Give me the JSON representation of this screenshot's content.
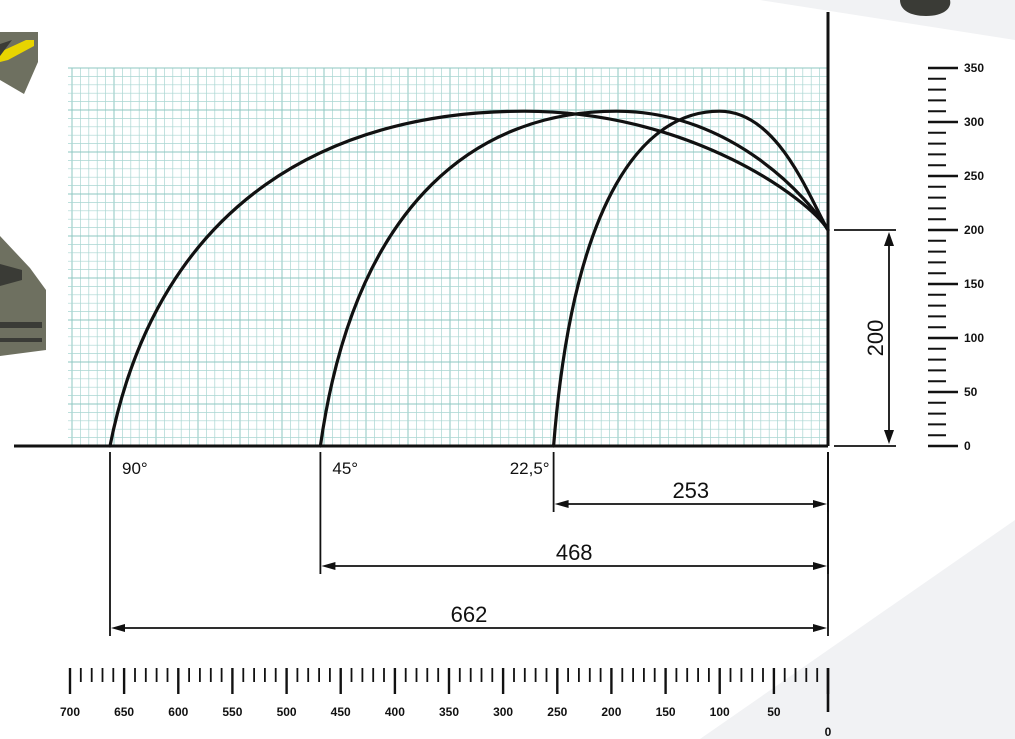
{
  "diagram": {
    "units_scale_max_height": 350,
    "units_scale_max_range": 700,
    "launch_height": 200,
    "height_label": "200",
    "trajectories": [
      {
        "angle_label": "90°",
        "distance": 662,
        "distance_label": "662",
        "apex_height": 310,
        "apex_distance_from_origin": 280
      },
      {
        "angle_label": "45°",
        "distance": 468,
        "distance_label": "468",
        "apex_height": 310,
        "apex_distance_from_origin": 195
      },
      {
        "angle_label": "22,5°",
        "distance": 253,
        "distance_label": "253",
        "apex_height": 310,
        "apex_distance_from_origin": 100
      }
    ],
    "vertical_scale_labels": [
      "350",
      "300",
      "250",
      "200",
      "150",
      "100",
      "50",
      "0"
    ],
    "vertical_scale_values": [
      350,
      300,
      250,
      200,
      150,
      100,
      50,
      0
    ],
    "horizontal_scale_labels": [
      "700",
      "650",
      "600",
      "550",
      "500",
      "450",
      "400",
      "350",
      "300",
      "250",
      "200",
      "150",
      "100",
      "50",
      "0"
    ],
    "horizontal_scale_values": [
      700,
      650,
      600,
      550,
      500,
      450,
      400,
      350,
      300,
      250,
      200,
      150,
      100,
      50,
      0
    ],
    "colors": {
      "ink": "#111111",
      "grid": "#a9d6d2",
      "accent": "#e8d400"
    }
  }
}
